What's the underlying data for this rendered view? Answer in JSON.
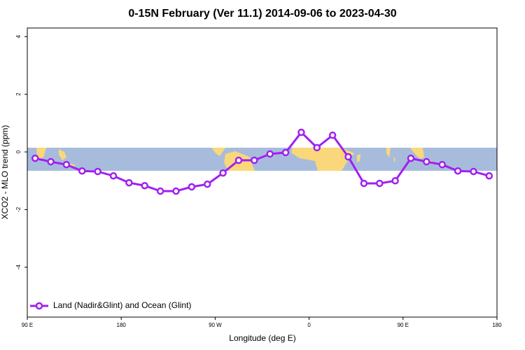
{
  "chart_data": {
    "type": "line",
    "title": "0-15N February (Ver 11.1)   2014-09-06 to 2023-04-30",
    "x_label": "Longitude (deg E)",
    "y_label": "XCO2 - MLO trend (ppm)",
    "x": [
      97.5,
      112.5,
      127.5,
      142.5,
      157.5,
      172.5,
      187.5,
      202.5,
      217.5,
      232.5,
      247.5,
      262.5,
      277.5,
      292.5,
      307.5,
      322.5,
      337.5,
      352.5,
      367.5,
      382.5,
      397.5,
      412.5,
      427.5,
      442.5,
      457.5,
      472.5,
      487.5,
      502.5,
      517.5,
      532.5
    ],
    "series": [
      {
        "name": "Land (Nadir&Glint) and Ocean (Glint)",
        "color": "#a020f0",
        "values": [
          -0.22,
          -0.34,
          -0.44,
          -0.66,
          -0.68,
          -0.83,
          -1.07,
          -1.17,
          -1.36,
          -1.36,
          -1.21,
          -1.12,
          -0.73,
          -0.29,
          -0.29,
          -0.07,
          -0.02,
          0.68,
          0.15,
          0.58,
          -0.17,
          -1.09,
          -1.09,
          -1.0,
          -0.22,
          -0.34,
          -0.44,
          -0.66,
          -0.68,
          -0.83
        ]
      }
    ],
    "xlim": [
      90,
      540
    ],
    "xticks": [
      {
        "value": 90,
        "label": "90 E"
      },
      180,
      {
        "value": 270,
        "label": "90 W"
      },
      {
        "value": 360,
        "label": "0"
      },
      {
        "value": 450,
        "label": "90 E"
      },
      {
        "value": 540,
        "label": "180"
      }
    ],
    "ylim": [
      -5.73,
      4.3
    ],
    "yticks": [
      -4,
      -2,
      0,
      2,
      4
    ],
    "legend": "lower left"
  }
}
